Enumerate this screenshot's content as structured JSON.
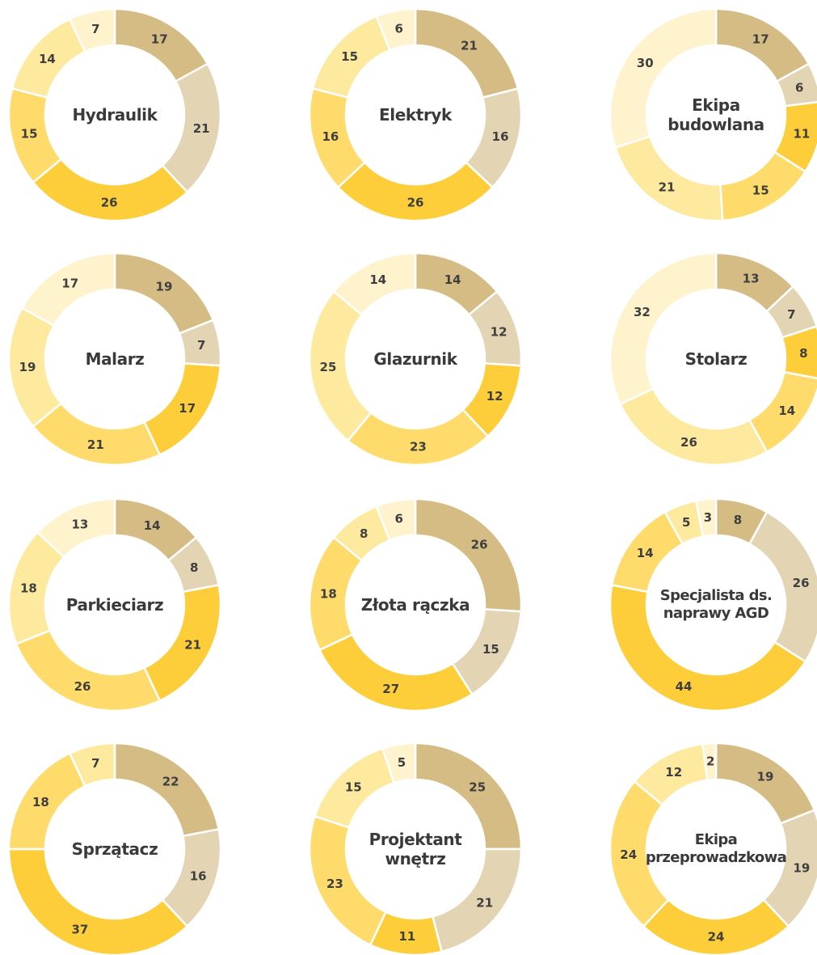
{
  "colors": [
    "#d4bc84",
    "#e3d5b4",
    "#fecd3a",
    "#fedb6a",
    "#feea9f",
    "#fef3cc"
  ],
  "chart_data": [
    {
      "type": "pie",
      "title": "Hydraulik",
      "values": [
        17,
        21,
        26,
        15,
        14,
        7
      ]
    },
    {
      "type": "pie",
      "title": "Elektryk",
      "values": [
        21,
        16,
        26,
        16,
        15,
        6
      ]
    },
    {
      "type": "pie",
      "title": "Ekipa budowlana",
      "values": [
        17,
        6,
        11,
        15,
        21,
        30
      ]
    },
    {
      "type": "pie",
      "title": "Malarz",
      "values": [
        19,
        7,
        17,
        21,
        19,
        17
      ]
    },
    {
      "type": "pie",
      "title": "Glazurnik",
      "values": [
        14,
        12,
        12,
        23,
        25,
        14
      ]
    },
    {
      "type": "pie",
      "title": "Stolarz",
      "values": [
        13,
        7,
        8,
        14,
        26,
        32
      ]
    },
    {
      "type": "pie",
      "title": "Parkieciarz",
      "values": [
        14,
        8,
        21,
        26,
        18,
        13
      ]
    },
    {
      "type": "pie",
      "title": "Złota rączka",
      "values": [
        26,
        15,
        27,
        18,
        8,
        6
      ]
    },
    {
      "type": "pie",
      "title": "Specjalista ds. naprawy AGD",
      "values": [
        8,
        26,
        44,
        14,
        5,
        3
      ]
    },
    {
      "type": "pie",
      "title": "Sprzątacz",
      "values": [
        22,
        16,
        37,
        18,
        7
      ]
    },
    {
      "type": "pie",
      "title": "Projektant wnętrz",
      "values": [
        25,
        21,
        11,
        23,
        15,
        5
      ]
    },
    {
      "type": "pie",
      "title": "Ekipa przeprowadzkowa",
      "values": [
        19,
        19,
        24,
        24,
        12,
        2
      ]
    }
  ]
}
